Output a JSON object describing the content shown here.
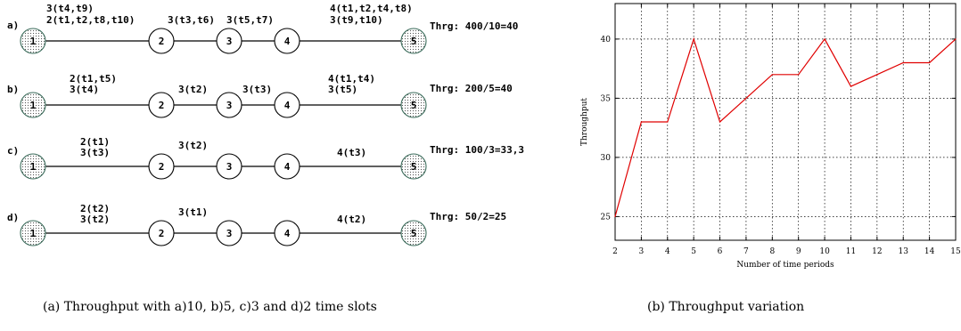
{
  "topologies": [
    {
      "row_label": "a)",
      "throughput": "Thrg: 400/10=40",
      "node_labels": [
        "1",
        "2",
        "3",
        "4",
        "5"
      ],
      "links": [
        [
          "3(t4,t9)",
          "2(t1,t2,t8,t10)"
        ],
        [
          "3(t3,t6)"
        ],
        [
          "3(t5,t7)"
        ],
        [
          "4(t1,t2,t4,t8)",
          "3(t9,t10)"
        ]
      ]
    },
    {
      "row_label": "b)",
      "throughput": "Thrg: 200/5=40",
      "node_labels": [
        "1",
        "2",
        "3",
        "4",
        "5"
      ],
      "links": [
        [
          "2(t1,t5)",
          "3(t4)"
        ],
        [
          "3(t2)"
        ],
        [
          "3(t3)"
        ],
        [
          "4(t1,t4)",
          "3(t5)"
        ]
      ]
    },
    {
      "row_label": "c)",
      "throughput": "Thrg: 100/3=33,3",
      "node_labels": [
        "1",
        "2",
        "3",
        "4",
        "5"
      ],
      "links": [
        [
          "2(t1)",
          "3(t3)"
        ],
        [
          "3(t2)"
        ],
        [],
        [
          "4(t3)"
        ]
      ]
    },
    {
      "row_label": "d)",
      "throughput": "Thrg: 50/2=25",
      "node_labels": [
        "1",
        "2",
        "3",
        "4",
        "5"
      ],
      "links": [
        [
          "2(t2)",
          "3(t2)"
        ],
        [
          "3(t1)"
        ],
        [],
        [
          "4(t2)"
        ]
      ]
    }
  ],
  "chart_data": {
    "type": "line",
    "title": "",
    "xlabel": "Number of time periods",
    "ylabel": "Throughput",
    "xlim": [
      2,
      15
    ],
    "ylim": [
      23,
      43
    ],
    "xticks": [
      2,
      3,
      4,
      5,
      6,
      7,
      8,
      9,
      10,
      11,
      12,
      13,
      14,
      15
    ],
    "yticks": [
      25,
      30,
      35,
      40
    ],
    "grid": true,
    "series": [
      {
        "color": "#e00000",
        "x": [
          2,
          3,
          4,
          5,
          6,
          7,
          8,
          9,
          10,
          11,
          12,
          13,
          14,
          15
        ],
        "y": [
          25,
          33,
          33,
          40,
          33,
          35,
          37,
          37,
          40,
          36,
          37,
          38,
          38,
          40
        ]
      }
    ]
  },
  "captions": {
    "left": "(a)  Throughput with a)10, b)5, c)3 and d)2 time slots",
    "right": "(b)  Throughput variation"
  },
  "colors": {
    "end_node_fill": "#d8d8d8",
    "end_node_stroke": "#3a6b5a",
    "line_color": "#e00000"
  }
}
